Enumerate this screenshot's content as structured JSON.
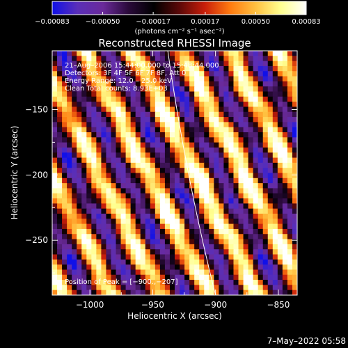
{
  "chart_data": {
    "type": "heatmap",
    "title": "Reconstructed RHESSI Image",
    "xlabel": "Heliocentric X (arcsec)",
    "ylabel": "Heliocentric Y (arcsec)",
    "xlim": [
      -1030,
      -835
    ],
    "ylim": [
      -292,
      -105
    ],
    "x_ticks": [
      -1000,
      -950,
      -900,
      -850
    ],
    "x_tick_labels": [
      "−1000",
      "−950",
      "−900",
      "−850"
    ],
    "y_ticks": [
      -250,
      -200,
      -150
    ],
    "y_tick_labels": [
      "−250",
      "−200",
      "−150"
    ],
    "colorbar": {
      "label": "(photons cm⁻² s⁻¹ asec⁻²)",
      "range": [
        -0.00083,
        0.00083
      ],
      "ticks": [
        -0.00083,
        -0.0005,
        -0.00017,
        0.00017,
        0.0005,
        0.00083
      ],
      "tick_labels": [
        "−0.00083",
        "−0.00050",
        "−0.00017",
        "0.00017",
        "0.00050",
        "0.00083"
      ],
      "colors": [
        "#1010e8",
        "#5a2fb8",
        "#6a2a9a",
        "#2a0a3a",
        "#000000",
        "#5a0808",
        "#c81e0a",
        "#ff7a10",
        "#ffc040",
        "#ffff90",
        "#ffffff"
      ]
    },
    "info_lines": [
      "21–Aug–2006 15:44:00.000 to 15:48:44.000",
      "Detectors: 3F 4F 5F 6F 7F 8F, Att 0",
      "Energy Range: 12.0 – 25.0 keV",
      "Clean     Total counts: 8.93E+03"
    ],
    "peak_label": "Position of Peak = [−900.,−207]",
    "limb_curve": {
      "x": [
        -938,
        -924,
        -900
      ],
      "y": [
        -105,
        -200,
        -292
      ]
    },
    "image": {
      "cols": 50,
      "rows": 48,
      "stripe_angle_deg": 62,
      "stripe_period_arcsec": 34
    }
  },
  "footer": {
    "date": "7–May–2022 05:58"
  }
}
